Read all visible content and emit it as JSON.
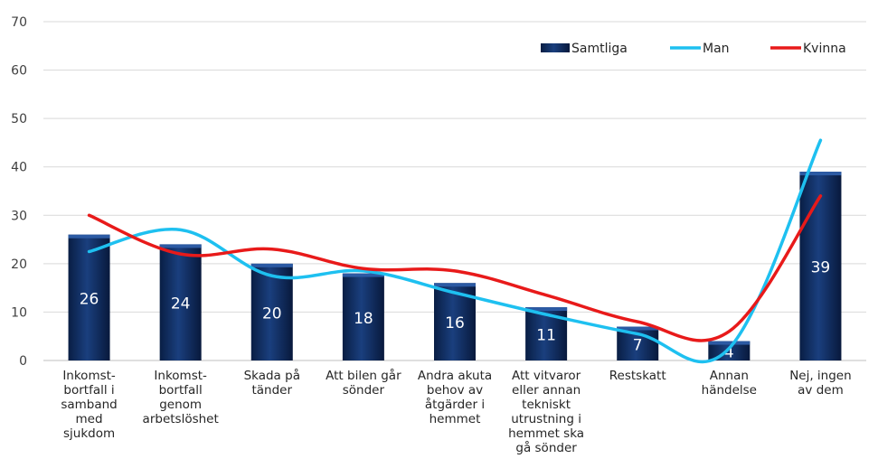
{
  "chart_data": {
    "type": "bar",
    "title": "",
    "xlabel": "",
    "ylabel": "",
    "ylim": [
      0,
      70
    ],
    "yticks": [
      0,
      10,
      20,
      30,
      40,
      50,
      60,
      70
    ],
    "grid": true,
    "legend_position": "top-right",
    "categories": [
      "Inkomst- bortfall i samband med sjukdom",
      "Inkomst- bortfall genom arbetslöshet",
      "Skada på tänder",
      "Att bilen går sönder",
      "Andra akuta behov av åtgärder i hemmet",
      "Att vitvaror eller annan tekniskt utrustning i hemmet ska gå sönder",
      "Restskatt",
      "Annan händelse",
      "Nej, ingen av dem"
    ],
    "category_lines": [
      [
        "Inkomst-",
        "bortfall i",
        "samband",
        "med",
        "sjukdom"
      ],
      [
        "Inkomst-",
        "bortfall",
        "genom",
        "arbetslöshet"
      ],
      [
        "Skada på",
        "tänder"
      ],
      [
        "Att bilen går",
        "sönder"
      ],
      [
        "Andra akuta",
        "behov av",
        "åtgärder i",
        "hemmet"
      ],
      [
        "Att vitvaror",
        "eller annan",
        "tekniskt",
        "utrustning i",
        "hemmet ska",
        "gå sönder"
      ],
      [
        "Restskatt"
      ],
      [
        "Annan",
        "händelse"
      ],
      [
        "Nej, ingen",
        "av dem"
      ]
    ],
    "series": [
      {
        "name": "Samtliga",
        "kind": "bar",
        "color": "#0d2a5c",
        "values": [
          26,
          24,
          20,
          18,
          16,
          11,
          7,
          4,
          39
        ],
        "show_labels": true
      },
      {
        "name": "Man",
        "kind": "line",
        "color": "#1ec0f0",
        "values": [
          22.5,
          27,
          17.5,
          18.5,
          14,
          9.5,
          5.5,
          2.5,
          45.5
        ]
      },
      {
        "name": "Kvinna",
        "kind": "line",
        "color": "#e81a1a",
        "values": [
          30,
          22,
          23,
          19,
          18.5,
          13.5,
          8,
          6,
          34
        ]
      }
    ]
  }
}
